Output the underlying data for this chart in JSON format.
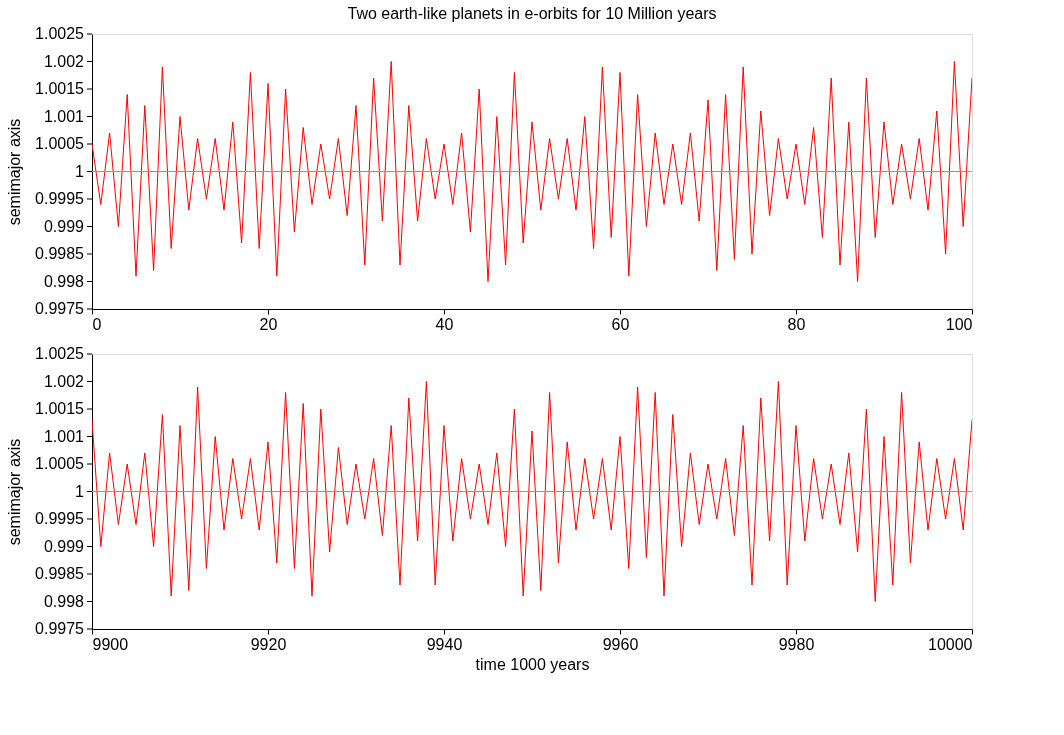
{
  "chart_data": [
    {
      "type": "line",
      "title": "Two earth-like planets in e-orbits for 10 Million years",
      "ylabel": "semimajor axis",
      "grid": false,
      "marker": "none",
      "line_style": "solid",
      "xlim": [
        0,
        100
      ],
      "xticks": [
        0,
        20,
        40,
        60,
        80,
        100
      ],
      "ylim": [
        0.9975,
        1.0025
      ],
      "yticks": [
        0.9975,
        0.998,
        0.9985,
        0.999,
        0.9995,
        1,
        1.0005,
        1.001,
        1.0015,
        1.002,
        1.0025
      ],
      "x": [
        0,
        1,
        2,
        3,
        4,
        5,
        6,
        7,
        8,
        9,
        10,
        11,
        12,
        13,
        14,
        15,
        16,
        17,
        18,
        19,
        20,
        21,
        22,
        23,
        24,
        25,
        26,
        27,
        28,
        29,
        30,
        31,
        32,
        33,
        34,
        35,
        36,
        37,
        38,
        39,
        40,
        41,
        42,
        43,
        44,
        45,
        46,
        47,
        48,
        49,
        50,
        51,
        52,
        53,
        54,
        55,
        56,
        57,
        58,
        59,
        60,
        61,
        62,
        63,
        64,
        65,
        66,
        67,
        68,
        69,
        70,
        71,
        72,
        73,
        74,
        75,
        76,
        77,
        78,
        79,
        80,
        81,
        82,
        83,
        84,
        85,
        86,
        87,
        88,
        89,
        90,
        91,
        92,
        93,
        94,
        95,
        96,
        97,
        98,
        99,
        100
      ],
      "series": [
        {
          "color": "#ff0000",
          "values": [
            1.0005,
            0.9994,
            1.0007,
            0.999,
            1.0014,
            0.9981,
            1.0012,
            0.9982,
            1.0019,
            0.9986,
            1.001,
            0.9993,
            1.0006,
            0.9995,
            1.0006,
            0.9993,
            1.0009,
            0.9987,
            1.0018,
            0.9986,
            1.0016,
            0.9981,
            1.0015,
            0.9989,
            1.0008,
            0.9994,
            1.0005,
            0.9995,
            1.0006,
            0.9992,
            1.0012,
            0.9983,
            1.0017,
            0.9991,
            1.002,
            0.9983,
            1.0012,
            0.9991,
            1.0006,
            0.9995,
            1.0005,
            0.9994,
            1.0007,
            0.9989,
            1.0015,
            0.998,
            1.001,
            0.9983,
            1.0018,
            0.9987,
            1.0009,
            0.9993,
            1.0006,
            0.9995,
            1.0006,
            0.9993,
            1.001,
            0.9986,
            1.0019,
            0.9988,
            1.0018,
            0.9981,
            1.0014,
            0.999,
            1.0007,
            0.9994,
            1.0005,
            0.9994,
            1.0007,
            0.9991,
            1.0013,
            0.9982,
            1.0014,
            0.9984,
            1.0019,
            0.9985,
            1.0011,
            0.9992,
            1.0006,
            0.9995,
            1.0005,
            0.9994,
            1.0008,
            0.9988,
            1.0017,
            0.9983,
            1.0009,
            0.998,
            1.0017,
            0.9988,
            1.0009,
            0.9994,
            1.0005,
            0.9995,
            1.0006,
            0.9993,
            1.0011,
            0.9985,
            1.002,
            0.999,
            1.0017
          ]
        },
        {
          "color": "#00ff00",
          "x": [
            0,
            100
          ],
          "values": [
            1,
            1
          ]
        }
      ]
    },
    {
      "type": "line",
      "xlabel": "time 1000 years",
      "ylabel": "semimajor axis",
      "grid": false,
      "marker": "none",
      "line_style": "solid",
      "xlim": [
        9900,
        10000
      ],
      "xticks": [
        9900,
        9920,
        9940,
        9960,
        9980,
        10000
      ],
      "ylim": [
        0.9975,
        1.0025
      ],
      "yticks": [
        0.9975,
        0.998,
        0.9985,
        0.999,
        0.9995,
        1,
        1.0005,
        1.001,
        1.0015,
        1.002,
        1.0025
      ],
      "x": [
        9900,
        9901,
        9902,
        9903,
        9904,
        9905,
        9906,
        9907,
        9908,
        9909,
        9910,
        9911,
        9912,
        9913,
        9914,
        9915,
        9916,
        9917,
        9918,
        9919,
        9920,
        9921,
        9922,
        9923,
        9924,
        9925,
        9926,
        9927,
        9928,
        9929,
        9930,
        9931,
        9932,
        9933,
        9934,
        9935,
        9936,
        9937,
        9938,
        9939,
        9940,
        9941,
        9942,
        9943,
        9944,
        9945,
        9946,
        9947,
        9948,
        9949,
        9950,
        9951,
        9952,
        9953,
        9954,
        9955,
        9956,
        9957,
        9958,
        9959,
        9960,
        9961,
        9962,
        9963,
        9964,
        9965,
        9966,
        9967,
        9968,
        9969,
        9970,
        9971,
        9972,
        9973,
        9974,
        9975,
        9976,
        9977,
        9978,
        9979,
        9980,
        9981,
        9982,
        9983,
        9984,
        9985,
        9986,
        9987,
        9988,
        9989,
        9990,
        9991,
        9992,
        9993,
        9994,
        9995,
        9996,
        9997,
        9998,
        9999,
        10000
      ],
      "series": [
        {
          "color": "#ff0000",
          "values": [
            1.0013,
            0.999,
            1.0007,
            0.9994,
            1.0005,
            0.9994,
            1.0007,
            0.999,
            1.0014,
            0.9981,
            1.0012,
            0.9982,
            1.0019,
            0.9986,
            1.001,
            0.9993,
            1.0006,
            0.9995,
            1.0006,
            0.9993,
            1.0009,
            0.9987,
            1.0018,
            0.9986,
            1.0016,
            0.9981,
            1.0015,
            0.9989,
            1.0008,
            0.9994,
            1.0005,
            0.9995,
            1.0006,
            0.9992,
            1.0012,
            0.9983,
            1.0017,
            0.9991,
            1.002,
            0.9983,
            1.0012,
            0.9991,
            1.0006,
            0.9995,
            1.0005,
            0.9994,
            1.0007,
            0.999,
            1.0015,
            0.9981,
            1.0011,
            0.9982,
            1.0018,
            0.9987,
            1.0009,
            0.9993,
            1.0006,
            0.9995,
            1.0006,
            0.9993,
            1.001,
            0.9986,
            1.0019,
            0.9988,
            1.0018,
            0.9981,
            1.0014,
            0.999,
            1.0007,
            0.9994,
            1.0005,
            0.9995,
            1.0006,
            0.9992,
            1.0012,
            0.9983,
            1.0017,
            0.9991,
            1.002,
            0.9983,
            1.0012,
            0.9991,
            1.0006,
            0.9995,
            1.0005,
            0.9994,
            1.0007,
            0.9989,
            1.0015,
            0.998,
            1.001,
            0.9983,
            1.0018,
            0.9987,
            1.0009,
            0.9993,
            1.0006,
            0.9995,
            1.0006,
            0.9993,
            1.0013
          ]
        },
        {
          "color": "#00ff00",
          "x": [
            9900,
            10000
          ],
          "values": [
            1,
            1
          ]
        }
      ]
    }
  ]
}
